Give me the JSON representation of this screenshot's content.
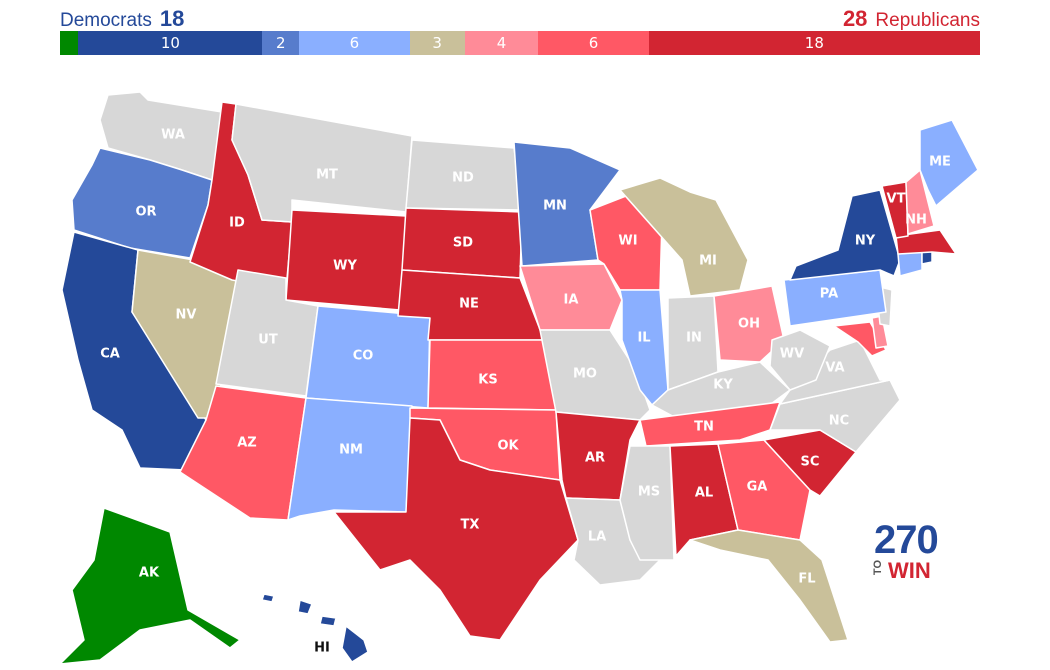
{
  "header": {
    "dem_name": "Democrats",
    "dem_count": "18",
    "rep_count": "28",
    "rep_name": "Republicans"
  },
  "bar": [
    {
      "name": "dem-alaska-green",
      "label": "",
      "seats": 1,
      "color": "#008800"
    },
    {
      "name": "safe-dem",
      "label": "10",
      "seats": 10,
      "color": "#244999"
    },
    {
      "name": "likely-dem",
      "label": "2",
      "seats": 2,
      "color": "#577ccc"
    },
    {
      "name": "lean-dem",
      "label": "6",
      "seats": 6,
      "color": "#8aafff"
    },
    {
      "name": "toss-up",
      "label": "3",
      "seats": 3,
      "color": "#c9c09a"
    },
    {
      "name": "tilt-rep",
      "label": "4",
      "seats": 4,
      "color": "#ff8b98"
    },
    {
      "name": "lean-rep",
      "label": "6",
      "seats": 6,
      "color": "#ff5865"
    },
    {
      "name": "safe-rep",
      "label": "18",
      "seats": 18,
      "color": "#d22532"
    }
  ],
  "colors": {
    "safe_dem": "#244999",
    "likely_dem": "#577ccc",
    "lean_dem": "#8aafff",
    "tossup": "#c9c09a",
    "tilt_rep": "#ff8b98",
    "lean_rep": "#ff5865",
    "safe_rep": "#d22532",
    "independent": "#008800",
    "no_race": "#d7d7d7"
  },
  "states": {
    "WA": "WA",
    "OR": "OR",
    "CA": "CA",
    "ID": "ID",
    "NV": "NV",
    "MT": "MT",
    "WY": "WY",
    "UT": "UT",
    "AZ": "AZ",
    "CO": "CO",
    "NM": "NM",
    "ND": "ND",
    "SD": "SD",
    "NE": "NE",
    "KS": "KS",
    "OK": "OK",
    "TX": "TX",
    "MN": "MN",
    "IA": "IA",
    "MO": "MO",
    "AR": "AR",
    "LA": "LA",
    "WI": "WI",
    "IL": "IL",
    "MI": "MI",
    "IN": "IN",
    "OH": "OH",
    "KY": "KY",
    "TN": "TN",
    "MS": "MS",
    "AL": "AL",
    "GA": "GA",
    "FL": "FL",
    "SC": "SC",
    "NC": "NC",
    "VA": "VA",
    "WV": "WV",
    "PA": "PA",
    "NY": "NY",
    "VT": "VT",
    "NH": "NH",
    "ME": "ME",
    "AK": "AK",
    "HI": "HI"
  },
  "logo": {
    "number": "270",
    "to": "TO",
    "win": "WIN"
  }
}
